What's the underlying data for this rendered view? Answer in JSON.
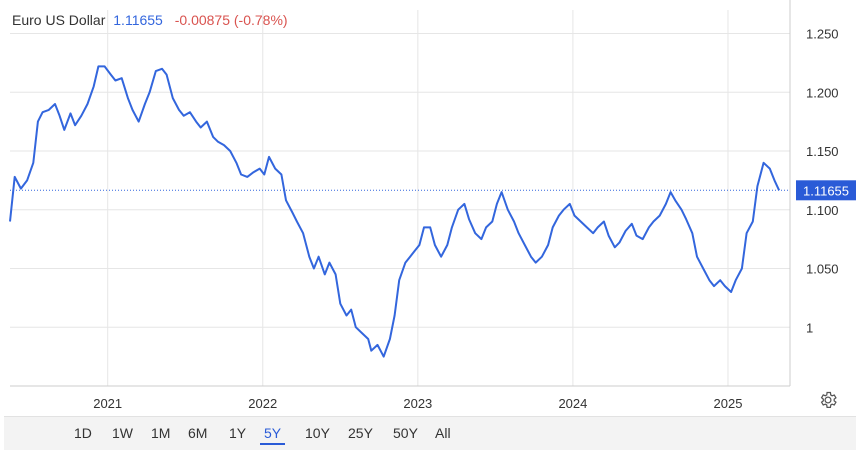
{
  "header": {
    "name": "Euro US Dollar",
    "price": "1.11655",
    "change": "-0.00875 (-0.78%)"
  },
  "current_label": "1.11655",
  "ranges": [
    "1D",
    "1W",
    "1M",
    "6M",
    "1Y",
    "5Y",
    "10Y",
    "25Y",
    "50Y",
    "All"
  ],
  "active_range": "5Y",
  "icons": {
    "settings": "gear-icon"
  },
  "colors": {
    "line": "#3366dd",
    "label_bg": "#2a5bd7",
    "change": "#d9534f",
    "grid": "#e6e6e6"
  },
  "chart_data": {
    "type": "line",
    "title": "",
    "xlabel": "",
    "ylabel": "",
    "x_ticks": [
      "2021",
      "2022",
      "2023",
      "2024",
      "2025"
    ],
    "y_ticks": [
      "1.250",
      "1.200",
      "1.150",
      "1.100",
      "1.050",
      "1"
    ],
    "y_tick_values": [
      1.25,
      1.2,
      1.15,
      1.1,
      1.05,
      1.0
    ],
    "ylim": [
      0.95,
      1.27
    ],
    "xlim": [
      2020.37,
      2025.4
    ],
    "current_value": 1.11655,
    "series": [
      {
        "values": [
          [
            2020.37,
            1.09
          ],
          [
            2020.4,
            1.128
          ],
          [
            2020.44,
            1.118
          ],
          [
            2020.48,
            1.125
          ],
          [
            2020.52,
            1.14
          ],
          [
            2020.55,
            1.175
          ],
          [
            2020.58,
            1.183
          ],
          [
            2020.62,
            1.185
          ],
          [
            2020.66,
            1.19
          ],
          [
            2020.69,
            1.18
          ],
          [
            2020.72,
            1.168
          ],
          [
            2020.76,
            1.182
          ],
          [
            2020.79,
            1.172
          ],
          [
            2020.83,
            1.18
          ],
          [
            2020.87,
            1.19
          ],
          [
            2020.91,
            1.205
          ],
          [
            2020.94,
            1.222
          ],
          [
            2020.98,
            1.222
          ],
          [
            2021.02,
            1.215
          ],
          [
            2021.05,
            1.21
          ],
          [
            2021.09,
            1.212
          ],
          [
            2021.13,
            1.195
          ],
          [
            2021.16,
            1.185
          ],
          [
            2021.2,
            1.175
          ],
          [
            2021.24,
            1.19
          ],
          [
            2021.27,
            1.2
          ],
          [
            2021.31,
            1.218
          ],
          [
            2021.35,
            1.22
          ],
          [
            2021.38,
            1.215
          ],
          [
            2021.42,
            1.195
          ],
          [
            2021.46,
            1.185
          ],
          [
            2021.49,
            1.18
          ],
          [
            2021.53,
            1.183
          ],
          [
            2021.57,
            1.175
          ],
          [
            2021.6,
            1.17
          ],
          [
            2021.64,
            1.175
          ],
          [
            2021.68,
            1.162
          ],
          [
            2021.71,
            1.158
          ],
          [
            2021.75,
            1.155
          ],
          [
            2021.79,
            1.15
          ],
          [
            2021.83,
            1.14
          ],
          [
            2021.86,
            1.13
          ],
          [
            2021.9,
            1.128
          ],
          [
            2021.94,
            1.132
          ],
          [
            2021.98,
            1.135
          ],
          [
            2022.01,
            1.13
          ],
          [
            2022.04,
            1.145
          ],
          [
            2022.08,
            1.135
          ],
          [
            2022.12,
            1.13
          ],
          [
            2022.15,
            1.108
          ],
          [
            2022.19,
            1.098
          ],
          [
            2022.22,
            1.09
          ],
          [
            2022.26,
            1.08
          ],
          [
            2022.3,
            1.06
          ],
          [
            2022.33,
            1.05
          ],
          [
            2022.36,
            1.06
          ],
          [
            2022.4,
            1.045
          ],
          [
            2022.43,
            1.055
          ],
          [
            2022.47,
            1.045
          ],
          [
            2022.5,
            1.02
          ],
          [
            2022.54,
            1.01
          ],
          [
            2022.57,
            1.015
          ],
          [
            2022.6,
            1.0
          ],
          [
            2022.64,
            0.995
          ],
          [
            2022.68,
            0.99
          ],
          [
            2022.7,
            0.98
          ],
          [
            2022.74,
            0.985
          ],
          [
            2022.78,
            0.975
          ],
          [
            2022.82,
            0.99
          ],
          [
            2022.85,
            1.01
          ],
          [
            2022.88,
            1.04
          ],
          [
            2022.92,
            1.055
          ],
          [
            2022.95,
            1.06
          ],
          [
            2022.98,
            1.065
          ],
          [
            2023.01,
            1.07
          ],
          [
            2023.04,
            1.085
          ],
          [
            2023.08,
            1.085
          ],
          [
            2023.11,
            1.07
          ],
          [
            2023.15,
            1.06
          ],
          [
            2023.19,
            1.07
          ],
          [
            2023.22,
            1.085
          ],
          [
            2023.26,
            1.1
          ],
          [
            2023.3,
            1.105
          ],
          [
            2023.33,
            1.092
          ],
          [
            2023.37,
            1.08
          ],
          [
            2023.41,
            1.075
          ],
          [
            2023.44,
            1.085
          ],
          [
            2023.48,
            1.09
          ],
          [
            2023.51,
            1.105
          ],
          [
            2023.54,
            1.115
          ],
          [
            2023.58,
            1.1
          ],
          [
            2023.62,
            1.09
          ],
          [
            2023.65,
            1.08
          ],
          [
            2023.69,
            1.07
          ],
          [
            2023.73,
            1.06
          ],
          [
            2023.76,
            1.055
          ],
          [
            2023.8,
            1.06
          ],
          [
            2023.84,
            1.07
          ],
          [
            2023.87,
            1.085
          ],
          [
            2023.91,
            1.095
          ],
          [
            2023.94,
            1.1
          ],
          [
            2023.98,
            1.105
          ],
          [
            2024.01,
            1.095
          ],
          [
            2024.05,
            1.09
          ],
          [
            2024.09,
            1.085
          ],
          [
            2024.13,
            1.08
          ],
          [
            2024.16,
            1.085
          ],
          [
            2024.2,
            1.09
          ],
          [
            2024.23,
            1.078
          ],
          [
            2024.27,
            1.068
          ],
          [
            2024.3,
            1.072
          ],
          [
            2024.34,
            1.082
          ],
          [
            2024.38,
            1.088
          ],
          [
            2024.41,
            1.078
          ],
          [
            2024.45,
            1.075
          ],
          [
            2024.49,
            1.085
          ],
          [
            2024.52,
            1.09
          ],
          [
            2024.56,
            1.095
          ],
          [
            2024.6,
            1.105
          ],
          [
            2024.63,
            1.115
          ],
          [
            2024.66,
            1.108
          ],
          [
            2024.7,
            1.1
          ],
          [
            2024.73,
            1.092
          ],
          [
            2024.77,
            1.08
          ],
          [
            2024.8,
            1.06
          ],
          [
            2024.84,
            1.05
          ],
          [
            2024.88,
            1.04
          ],
          [
            2024.91,
            1.035
          ],
          [
            2024.95,
            1.04
          ],
          [
            2024.98,
            1.035
          ],
          [
            2025.02,
            1.03
          ],
          [
            2025.05,
            1.04
          ],
          [
            2025.09,
            1.05
          ],
          [
            2025.12,
            1.08
          ],
          [
            2025.16,
            1.09
          ],
          [
            2025.19,
            1.12
          ],
          [
            2025.23,
            1.14
          ],
          [
            2025.27,
            1.135
          ],
          [
            2025.3,
            1.125
          ],
          [
            2025.33,
            1.11655
          ]
        ]
      }
    ]
  }
}
